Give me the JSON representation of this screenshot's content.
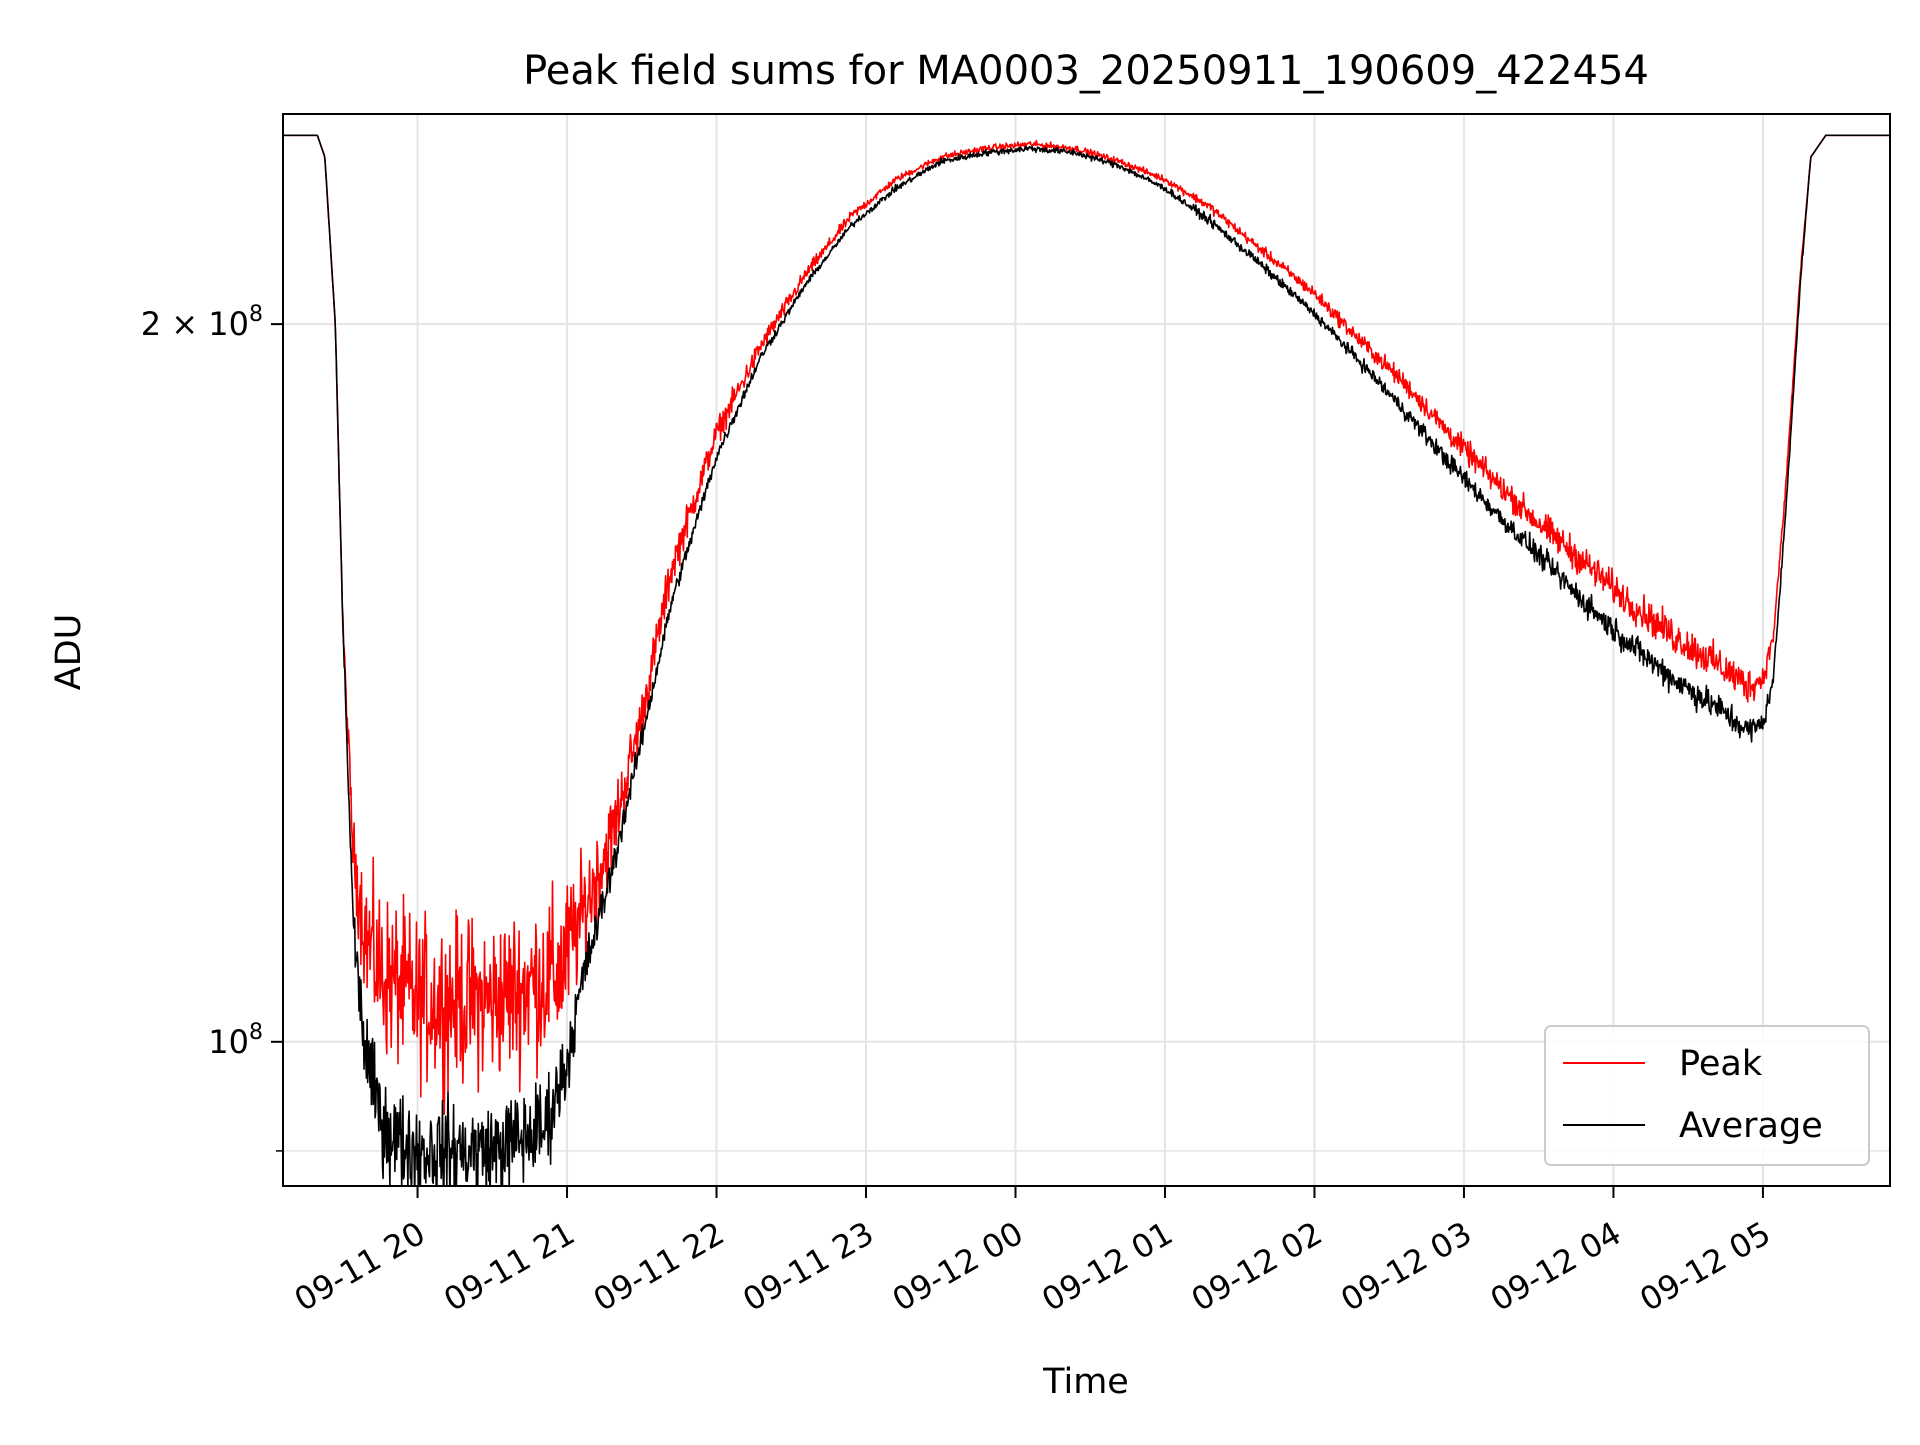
{
  "chart_data": {
    "type": "line",
    "title": "Peak field sums for MA0003_20250911_190609_422454",
    "xlabel": "Time",
    "ylabel": "ADU",
    "y_scale": "log",
    "ylim": [
      87000000,
      245000000
    ],
    "x_hours_range": [
      19.1,
      29.85
    ],
    "x_ticks": [
      {
        "label": "09-11 20",
        "hour": 20
      },
      {
        "label": "09-11 21",
        "hour": 21
      },
      {
        "label": "09-11 22",
        "hour": 22
      },
      {
        "label": "09-11 23",
        "hour": 23
      },
      {
        "label": "09-12 00",
        "hour": 24
      },
      {
        "label": "09-12 01",
        "hour": 25
      },
      {
        "label": "09-12 02",
        "hour": 26
      },
      {
        "label": "09-12 03",
        "hour": 27
      },
      {
        "label": "09-12 04",
        "hour": 28
      },
      {
        "label": "09-12 05",
        "hour": 29
      }
    ],
    "y_ticks": [
      {
        "base": "2 × 10",
        "exp": "8",
        "value": 200000000
      },
      {
        "base": "10",
        "exp": "8",
        "value": 100000000
      }
    ],
    "y_minor_ticks": [
      90000000
    ],
    "grid": true,
    "legend_position": "lower-right",
    "series": [
      {
        "name": "Peak",
        "color": "#ff0000",
        "x": [
          19.1,
          19.33,
          19.38,
          19.45,
          19.5,
          19.57,
          19.65,
          19.75,
          20.0,
          20.5,
          20.95,
          21.1,
          21.3,
          21.5,
          21.7,
          22.0,
          22.3,
          22.6,
          22.9,
          23.2,
          23.5,
          23.8,
          24.1,
          24.4,
          24.7,
          25.0,
          25.3,
          25.6,
          26.0,
          26.3,
          26.6,
          26.9,
          27.2,
          27.5,
          27.8,
          28.1,
          28.4,
          28.7,
          28.9,
          29.0,
          29.07,
          29.15,
          29.25,
          29.32,
          29.42,
          29.85
        ],
        "y": [
          240000000,
          240000000,
          235000000,
          200000000,
          150000000,
          120000000,
          111000000,
          107000000,
          104000000,
          104000000,
          107000000,
          113000000,
          122000000,
          137000000,
          158000000,
          180000000,
          196000000,
          210000000,
          222000000,
          230000000,
          235000000,
          237000000,
          238000000,
          237000000,
          234000000,
          230000000,
          224000000,
          216000000,
          206000000,
          197000000,
          189000000,
          180000000,
          172000000,
          165000000,
          159000000,
          153000000,
          148000000,
          144000000,
          141000000,
          142000000,
          148000000,
          170000000,
          210000000,
          235000000,
          240000000,
          240000000
        ],
        "noise": [
          0,
          0,
          0,
          0,
          0.005,
          0.02,
          0.04,
          0.05,
          0.05,
          0.05,
          0.05,
          0.035,
          0.025,
          0.015,
          0.012,
          0.008,
          0.006,
          0.004,
          0.003,
          0.002,
          0.002,
          0.002,
          0.002,
          0.002,
          0.002,
          0.002,
          0.003,
          0.003,
          0.004,
          0.005,
          0.006,
          0.007,
          0.008,
          0.009,
          0.01,
          0.01,
          0.011,
          0.011,
          0.011,
          0.008,
          0.005,
          0.003,
          0.002,
          0,
          0,
          0
        ]
      },
      {
        "name": "Average",
        "color": "#000000",
        "x": [
          19.1,
          19.33,
          19.38,
          19.45,
          19.5,
          19.57,
          19.65,
          19.75,
          19.85,
          20.0,
          20.5,
          20.85,
          21.0,
          21.1,
          21.3,
          21.5,
          21.7,
          22.0,
          22.3,
          22.6,
          22.9,
          23.2,
          23.5,
          23.8,
          24.1,
          24.4,
          24.7,
          25.0,
          25.3,
          25.6,
          26.0,
          26.3,
          26.6,
          26.9,
          27.2,
          27.5,
          27.8,
          28.1,
          28.4,
          28.7,
          28.9,
          29.0,
          29.07,
          29.15,
          29.25,
          29.32,
          29.42,
          29.85
        ],
        "y": [
          240000000,
          240000000,
          235000000,
          200000000,
          150000000,
          112000000,
          99000000,
          93000000,
          91000000,
          90000000,
          90000000,
          92000000,
          98000000,
          106000000,
          118000000,
          134000000,
          153000000,
          176000000,
          194000000,
          208000000,
          220000000,
          228000000,
          234000000,
          236000000,
          237000000,
          236000000,
          233000000,
          228000000,
          221000000,
          213000000,
          202000000,
          193000000,
          184000000,
          175000000,
          167000000,
          160000000,
          153000000,
          147000000,
          142000000,
          138000000,
          135000000,
          136000000,
          142000000,
          166000000,
          208000000,
          235000000,
          240000000,
          240000000
        ],
        "noise": [
          0,
          0,
          0,
          0,
          0.005,
          0.015,
          0.025,
          0.03,
          0.03,
          0.03,
          0.03,
          0.03,
          0.022,
          0.015,
          0.01,
          0.007,
          0.005,
          0.004,
          0.003,
          0.002,
          0.002,
          0.002,
          0.002,
          0.002,
          0.002,
          0.002,
          0.002,
          0.002,
          0.003,
          0.003,
          0.003,
          0.004,
          0.005,
          0.006,
          0.006,
          0.007,
          0.008,
          0.008,
          0.009,
          0.009,
          0.009,
          0.007,
          0.004,
          0.003,
          0.002,
          0,
          0,
          0
        ]
      }
    ]
  }
}
